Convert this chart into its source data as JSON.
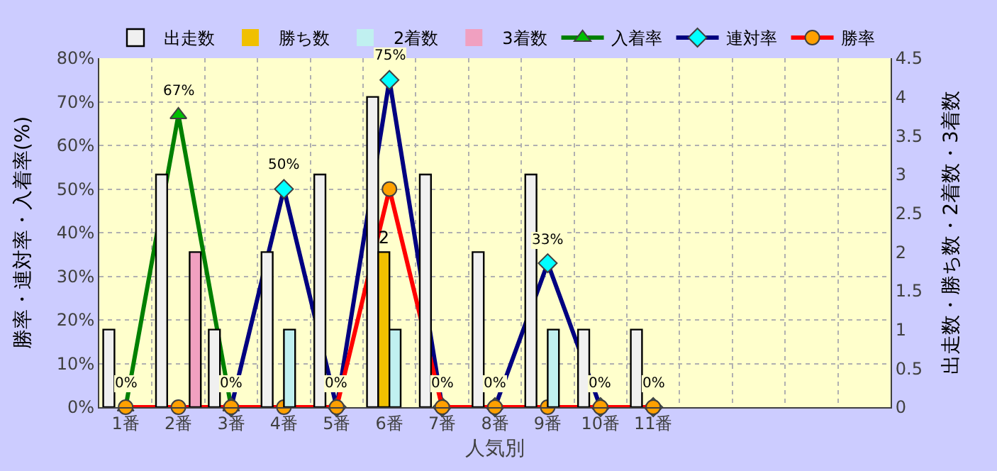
{
  "chart_data": {
    "type": "bar",
    "xlabel": "人気別",
    "ylabel": "勝率・連対率・入着率(%)",
    "y2label": "出走数・勝ち数・2着数・3着数",
    "categories": [
      "1番",
      "2番",
      "3番",
      "4番",
      "5番",
      "6番",
      "7番",
      "8番",
      "9番",
      "10番",
      "11番",
      null,
      null,
      null,
      null
    ],
    "series": [
      {
        "name": "出走数",
        "axis": "y2",
        "color": "#f0f0f0",
        "values": [
          1,
          3,
          1,
          2,
          3,
          4,
          3,
          2,
          3,
          1,
          1,
          null,
          null,
          null,
          null
        ]
      },
      {
        "name": "勝ち数",
        "axis": "y2",
        "color": "#f0c000",
        "values": [
          0,
          0,
          0,
          0,
          0,
          2,
          0,
          0,
          0,
          0,
          0,
          null,
          null,
          null,
          null
        ],
        "value_labels": [
          null,
          null,
          null,
          null,
          null,
          "2",
          null,
          null,
          null,
          null,
          null,
          null,
          null,
          null,
          null
        ]
      },
      {
        "name": "2着数",
        "axis": "y2",
        "color": "#c0f0f0",
        "values": [
          0,
          0,
          0,
          1,
          0,
          1,
          0,
          0,
          1,
          0,
          0,
          null,
          null,
          null,
          null
        ]
      },
      {
        "name": "3着数",
        "axis": "y2",
        "color": "#f0a0c0",
        "values": [
          0,
          2,
          0,
          0,
          0,
          0,
          0,
          0,
          0,
          0,
          0,
          null,
          null,
          null,
          null
        ]
      },
      {
        "name": "入着率",
        "type": "line",
        "marker": "triangle",
        "color": "#008000",
        "colors": [
          "#00c000",
          "#00c000",
          "#00c000",
          "#00c000",
          "#00c000",
          "#00c000",
          "#00c000",
          "#00c000",
          "#00c000",
          "#00c000",
          "#00c000",
          null,
          null,
          null,
          null
        ],
        "values": [
          0,
          67,
          0,
          null,
          null,
          null,
          null,
          null,
          null,
          null,
          null,
          null,
          null,
          null,
          null
        ],
        "value_labels": [
          "0%",
          "67%",
          "0%",
          null,
          null,
          null,
          null,
          null,
          null,
          null,
          null,
          null,
          null,
          null,
          null
        ]
      },
      {
        "name": "連対率",
        "type": "line",
        "marker": "diamond",
        "color": "#000080",
        "colors": [
          "#00ffff",
          "#00ffff",
          "#00ffff",
          "#00ffff",
          "#00ffff",
          "#00ffff",
          "#00ffff",
          "#00ffff",
          "#00ffff",
          "#00ffff",
          "#00ffff",
          null,
          null,
          null,
          null
        ],
        "values": [
          null,
          null,
          0,
          50,
          0,
          75,
          0,
          0,
          33,
          0,
          0,
          null,
          null,
          null,
          null
        ],
        "value_labels": [
          null,
          null,
          null,
          "50%",
          "0%",
          "75%",
          "0%",
          "0%",
          "33%",
          "0%",
          "0%",
          null,
          null,
          null,
          null
        ]
      },
      {
        "name": "勝率",
        "type": "line",
        "marker": "circle",
        "color": "#ff0000",
        "colors": [
          "#ffa000",
          "#ffa000",
          "#ffa000",
          "#ffa000",
          "#ffa000",
          "#ffa000",
          "#ffa000",
          "#ffa000",
          "#ffa000",
          "#ffa000",
          "#ffa000",
          null,
          null,
          null,
          null
        ],
        "values": [
          0,
          0,
          0,
          0,
          0,
          50,
          0,
          0,
          0,
          0,
          0,
          null,
          null,
          null,
          null
        ]
      }
    ],
    "ylim": [
      0,
      80
    ],
    "yticks": [
      {
        "value": 0,
        "label": "0%"
      },
      {
        "value": 10,
        "label": "10%"
      },
      {
        "value": 20,
        "label": "20%"
      },
      {
        "value": 30,
        "label": "30%"
      },
      {
        "value": 40,
        "label": "40%"
      },
      {
        "value": 50,
        "label": "50%"
      },
      {
        "value": 60,
        "label": "60%"
      },
      {
        "value": 70,
        "label": "70%"
      },
      {
        "value": 80,
        "label": "80%"
      }
    ],
    "y2lim": [
      0,
      4.5
    ],
    "y2ticks": [
      0,
      0.5,
      1,
      1.5,
      2,
      2.5,
      3,
      3.5,
      4,
      4.5
    ],
    "grid": true,
    "legend": "top"
  }
}
